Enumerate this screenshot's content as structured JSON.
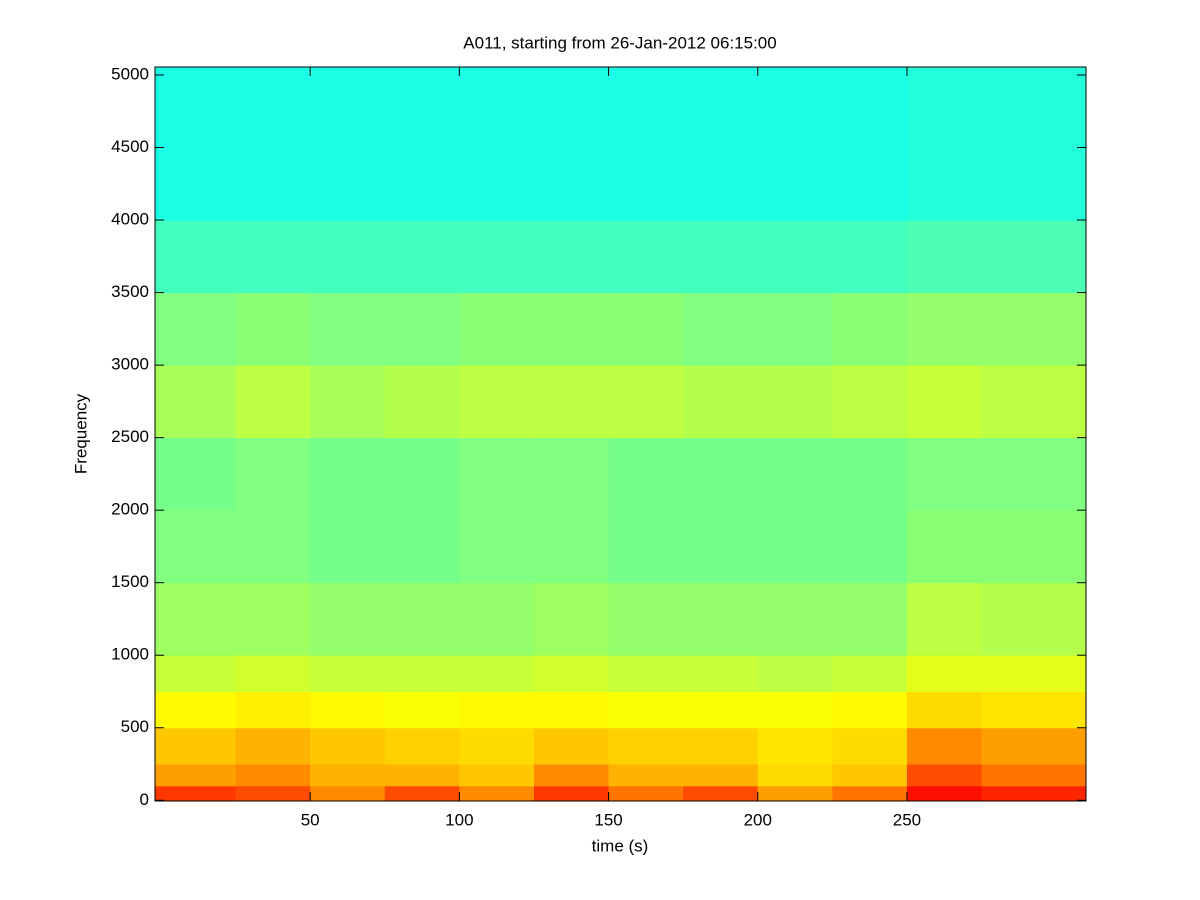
{
  "chart_data": {
    "type": "spectrogram",
    "title": "A011, starting from 26-Jan-2012 06:15:00",
    "xlabel": "time (s)",
    "ylabel": "Frequency",
    "x_edges": [
      -2,
      25,
      50,
      75,
      100,
      125,
      150,
      175,
      200,
      225,
      250,
      275,
      310
    ],
    "y_edges": [
      -5,
      100,
      250,
      500,
      750,
      1000,
      1500,
      2000,
      2500,
      3000,
      3500,
      4000,
      5055
    ],
    "z": [
      [
        0.82,
        0.8,
        0.74,
        0.8,
        0.74,
        0.82,
        0.76,
        0.8,
        0.72,
        0.76,
        0.86,
        0.84
      ],
      [
        0.72,
        0.74,
        0.7,
        0.7,
        0.68,
        0.74,
        0.7,
        0.7,
        0.66,
        0.68,
        0.8,
        0.76
      ],
      [
        0.68,
        0.7,
        0.68,
        0.67,
        0.66,
        0.68,
        0.67,
        0.67,
        0.65,
        0.66,
        0.74,
        0.72
      ],
      [
        0.63,
        0.64,
        0.63,
        0.62,
        0.63,
        0.63,
        0.62,
        0.62,
        0.62,
        0.63,
        0.66,
        0.65
      ],
      [
        0.57,
        0.58,
        0.57,
        0.57,
        0.57,
        0.58,
        0.57,
        0.57,
        0.56,
        0.57,
        0.6,
        0.6
      ],
      [
        0.53,
        0.53,
        0.52,
        0.52,
        0.52,
        0.53,
        0.52,
        0.52,
        0.52,
        0.52,
        0.56,
        0.55
      ],
      [
        0.5,
        0.5,
        0.49,
        0.49,
        0.5,
        0.5,
        0.49,
        0.49,
        0.49,
        0.49,
        0.51,
        0.51
      ],
      [
        0.49,
        0.5,
        0.49,
        0.49,
        0.5,
        0.5,
        0.49,
        0.49,
        0.49,
        0.49,
        0.5,
        0.5
      ],
      [
        0.54,
        0.56,
        0.54,
        0.55,
        0.56,
        0.56,
        0.56,
        0.55,
        0.55,
        0.56,
        0.57,
        0.56
      ],
      [
        0.5,
        0.51,
        0.5,
        0.5,
        0.51,
        0.51,
        0.51,
        0.5,
        0.5,
        0.51,
        0.52,
        0.52
      ],
      [
        0.44,
        0.44,
        0.44,
        0.44,
        0.44,
        0.44,
        0.44,
        0.44,
        0.44,
        0.44,
        0.45,
        0.45
      ],
      [
        0.4,
        0.4,
        0.4,
        0.4,
        0.4,
        0.4,
        0.4,
        0.4,
        0.4,
        0.4,
        0.41,
        0.41
      ]
    ],
    "colormap": "jet",
    "clim": [
      0,
      1
    ],
    "xlim": [
      -2,
      310
    ],
    "ylim": [
      -5,
      5055
    ],
    "xticks": [
      50,
      100,
      150,
      200,
      250
    ],
    "yticks": [
      0,
      500,
      1000,
      1500,
      2000,
      2500,
      3000,
      3500,
      4000,
      4500,
      5000
    ]
  }
}
